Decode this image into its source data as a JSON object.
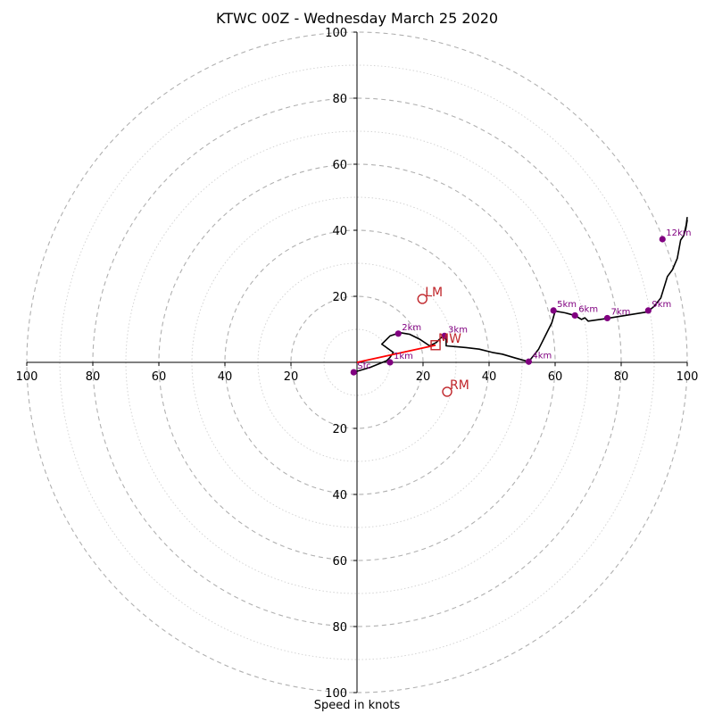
{
  "page": {
    "title": "KTWC 00Z - Wednesday March 25 2020"
  },
  "chart_data": {
    "type": "hodograph",
    "title": "KTWC 00Z - Wednesday March 25 2020",
    "xlabel": "Speed in knots",
    "ylabel": "",
    "xlim": [
      -100,
      100
    ],
    "ylim": [
      -100,
      100
    ],
    "grid": "concentric rings every 10 knots (dashed at multiples of 20, dotted between)",
    "x_tick_labels": [
      "100",
      "80",
      "60",
      "40",
      "20",
      "20",
      "40",
      "60",
      "80",
      "100"
    ],
    "y_tick_labels": [
      "100",
      "80",
      "60",
      "40",
      "20",
      "20",
      "40",
      "60",
      "80",
      "100"
    ],
    "series": [
      {
        "type": "line",
        "color": "#000000",
        "points": [
          [
            -1,
            -3
          ],
          [
            4,
            -1.5
          ],
          [
            9,
            0.5
          ],
          [
            10,
            1.5
          ],
          [
            11,
            3
          ],
          [
            7.5,
            5.5
          ],
          [
            10,
            8
          ],
          [
            13,
            9
          ],
          [
            16,
            8.5
          ],
          [
            19,
            7
          ],
          [
            22,
            5
          ],
          [
            24,
            6
          ],
          [
            25,
            7
          ],
          [
            26,
            8
          ],
          [
            27,
            7
          ],
          [
            27,
            5
          ],
          [
            33,
            4.5
          ],
          [
            37,
            4
          ],
          [
            41,
            3
          ],
          [
            44,
            2.5
          ],
          [
            48,
            1.3
          ],
          [
            52,
            0.2
          ],
          [
            55,
            4
          ],
          [
            57,
            8
          ],
          [
            59,
            12
          ],
          [
            60,
            15.5
          ],
          [
            63,
            15
          ],
          [
            66,
            14.2
          ],
          [
            68,
            13
          ],
          [
            69,
            13.5
          ],
          [
            70,
            12.5
          ],
          [
            75,
            13.2
          ],
          [
            80,
            14
          ],
          [
            88,
            15.3
          ],
          [
            90,
            17
          ],
          [
            92,
            19.5
          ],
          [
            94,
            26
          ],
          [
            95.5,
            28
          ],
          [
            97,
            31.5
          ],
          [
            98,
            37
          ],
          [
            99,
            38.5
          ],
          [
            100,
            43
          ],
          [
            99.5,
            40
          ],
          [
            100,
            44
          ]
        ]
      },
      {
        "type": "line",
        "name": "storm motion vector",
        "color": "#ff0000",
        "points": [
          [
            0,
            0
          ],
          [
            23.8,
            5.2
          ]
        ]
      }
    ],
    "height_markers": [
      {
        "label": "Sfc",
        "x": -1,
        "y": -3
      },
      {
        "label": "1km",
        "x": 10,
        "y": 0
      },
      {
        "label": "2km",
        "x": 12.5,
        "y": 8.7
      },
      {
        "label": "3km",
        "x": 26.5,
        "y": 8
      },
      {
        "label": "4km",
        "x": 52,
        "y": 0.2
      },
      {
        "label": "5km",
        "x": 59.5,
        "y": 15.7
      },
      {
        "label": "6km",
        "x": 66,
        "y": 14.2
      },
      {
        "label": "7km",
        "x": 75.8,
        "y": 13.4
      },
      {
        "label": "9km",
        "x": 88.2,
        "y": 15.7
      },
      {
        "label": "12km",
        "x": 92.5,
        "y": 37.3
      }
    ],
    "storm_motions": [
      {
        "label": "LM",
        "x": 19.8,
        "y": 19.2,
        "marker": "circle"
      },
      {
        "label": "RM",
        "x": 27.3,
        "y": -8.9,
        "marker": "circle"
      },
      {
        "label": "MW",
        "x": 23.8,
        "y": 5.2,
        "marker": "square"
      }
    ],
    "colors": {
      "hodograph_line": "#000000",
      "height_marker": "#800080",
      "storm_motion": "#c0262b",
      "vector": "#ff0000",
      "grid": "#b0b0b0"
    }
  }
}
